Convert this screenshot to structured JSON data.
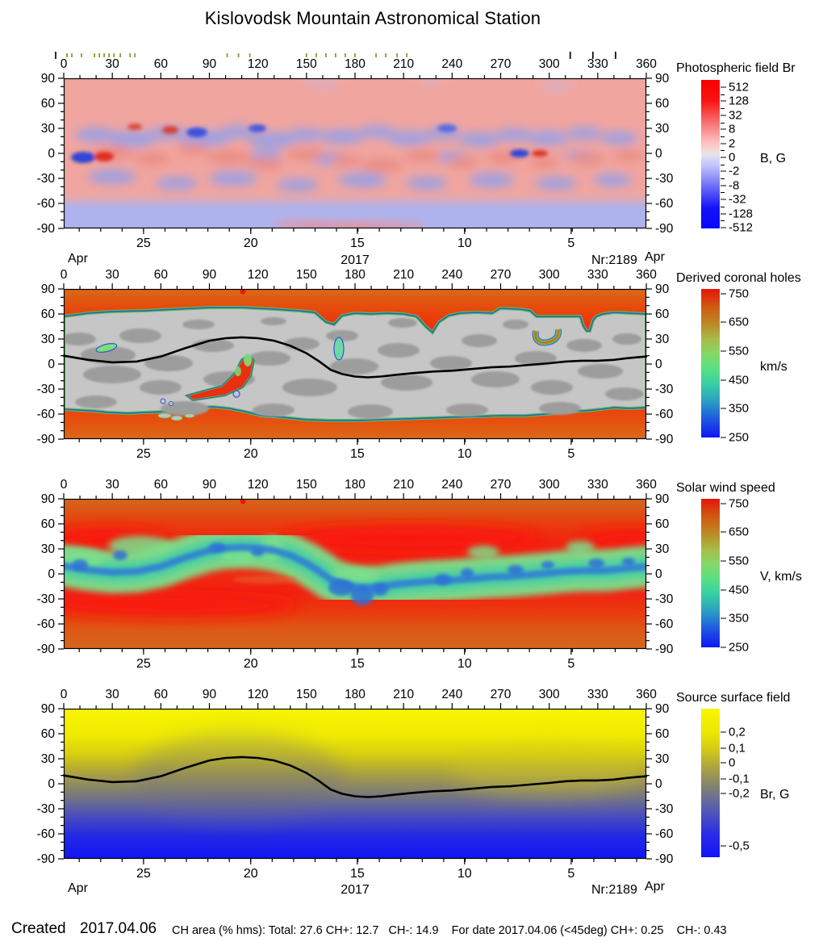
{
  "title": "Kislovodsk Mountain Astronomical Station",
  "footer": {
    "created": "Created",
    "created_date": "2017.04.06",
    "ch_area": "CH area (% hms): Total: 27.6 CH+: 12.7   CH-: 14.9    For date 2017.04.06 (<45deg) CH+: 0.25    CH-: 0.43"
  },
  "chart_data": [
    {
      "id": "photospheric-field-br",
      "type": "heatmap",
      "title": "Photospheric field Br",
      "x_axis": {
        "range": [
          0,
          360
        ],
        "major_ticks": [
          0,
          30,
          60,
          90,
          120,
          150,
          180,
          210,
          240,
          270,
          300,
          330,
          360
        ],
        "minor_step": 10
      },
      "y_axis": {
        "range": [
          -90,
          90
        ],
        "major_ticks": [
          90,
          60,
          30,
          0,
          -30,
          -60,
          -90
        ],
        "minor_step": 10
      },
      "date_axis": {
        "labels": [
          "25",
          "20",
          "15",
          "10",
          "5"
        ],
        "positions": [
          0.137,
          0.321,
          0.504,
          0.688,
          0.871
        ],
        "minor_step": 0.0368
      },
      "date_row": {
        "left": "Apr",
        "center": "2017",
        "right_nr": "Nr:2189",
        "right": "Apr"
      },
      "event_ticks": {
        "olive": [
          2,
          5,
          11,
          19,
          22,
          25,
          28,
          31,
          35,
          41,
          44,
          101,
          108,
          115,
          150,
          156,
          162,
          168,
          174,
          180,
          193,
          199,
          206,
          212
        ],
        "black": [
          -5,
          313,
          327,
          341
        ]
      },
      "colorbar": {
        "title": "Photospheric field Br",
        "unit": "B, G",
        "minor_between": true,
        "gradient_stops": [
          "#f80000",
          "#f87878",
          "#e6e6e6",
          "#7878f8",
          "#0808f8"
        ],
        "ticks": [
          {
            "label": "512",
            "pos": 0.05
          },
          {
            "label": "128",
            "pos": 0.144
          },
          {
            "label": "32",
            "pos": 0.239
          },
          {
            "label": "8",
            "pos": 0.333
          },
          {
            "label": "2",
            "pos": 0.428
          },
          {
            "label": "0",
            "pos": 0.522
          },
          {
            "label": "-2",
            "pos": 0.616
          },
          {
            "label": "-8",
            "pos": 0.711
          },
          {
            "label": "-32",
            "pos": 0.805
          },
          {
            "label": "-128",
            "pos": 0.9
          },
          {
            "label": "-512",
            "pos": 0.994
          }
        ]
      }
    },
    {
      "id": "derived-coronal-holes",
      "type": "heatmap",
      "title": "Derived coronal holes",
      "x_axis": {
        "range": [
          0,
          360
        ],
        "major_ticks": [
          0,
          30,
          60,
          90,
          120,
          150,
          180,
          210,
          240,
          270,
          300,
          330,
          360
        ],
        "minor_step": 10
      },
      "y_axis": {
        "range": [
          -90,
          90
        ],
        "major_ticks": [
          90,
          60,
          30,
          0,
          -30,
          -60,
          -90
        ],
        "minor_step": 10
      },
      "date_axis": {
        "labels": [
          "25",
          "20",
          "15",
          "10",
          "5"
        ],
        "positions": [
          0.137,
          0.321,
          0.504,
          0.688,
          0.871
        ],
        "minor_step": 0.0368
      },
      "neutral_line": [
        [
          0,
          10
        ],
        [
          15,
          5
        ],
        [
          30,
          2
        ],
        [
          45,
          3
        ],
        [
          60,
          9
        ],
        [
          75,
          19
        ],
        [
          90,
          28
        ],
        [
          100,
          31
        ],
        [
          110,
          32
        ],
        [
          120,
          31
        ],
        [
          130,
          28
        ],
        [
          140,
          22
        ],
        [
          150,
          13
        ],
        [
          158,
          3
        ],
        [
          165,
          -7
        ],
        [
          172,
          -12
        ],
        [
          180,
          -15
        ],
        [
          188,
          -16
        ],
        [
          196,
          -15
        ],
        [
          205,
          -13
        ],
        [
          215,
          -11
        ],
        [
          228,
          -9
        ],
        [
          240,
          -8
        ],
        [
          252,
          -6
        ],
        [
          264,
          -4
        ],
        [
          276,
          -3
        ],
        [
          288,
          -1
        ],
        [
          300,
          1
        ],
        [
          310,
          3
        ],
        [
          320,
          4
        ],
        [
          330,
          4
        ],
        [
          340,
          5
        ],
        [
          348,
          7
        ],
        [
          354,
          8
        ],
        [
          360,
          9
        ]
      ],
      "colorbar": {
        "title": "Derived coronal holes",
        "unit": "km/s",
        "minor_between": false,
        "gradient_stops": [
          "#e81408",
          "#bb8c28",
          "#58e084",
          "#2a9cc4",
          "#1016f4"
        ],
        "ticks": [
          {
            "label": "750",
            "pos": 0.03
          },
          {
            "label": "650",
            "pos": 0.224
          },
          {
            "label": "550",
            "pos": 0.418
          },
          {
            "label": "450",
            "pos": 0.612
          },
          {
            "label": "350",
            "pos": 0.806
          },
          {
            "label": "250",
            "pos": 1.0
          }
        ]
      }
    },
    {
      "id": "solar-wind-speed",
      "type": "heatmap",
      "title": "Solar wind speed",
      "x_axis": {
        "range": [
          0,
          360
        ],
        "major_ticks": [
          0,
          30,
          60,
          90,
          120,
          150,
          180,
          210,
          240,
          270,
          300,
          330,
          360
        ],
        "minor_step": 10
      },
      "y_axis": {
        "range": [
          -90,
          90
        ],
        "major_ticks": [
          90,
          60,
          30,
          0,
          -30,
          -60,
          -90
        ],
        "minor_step": 10
      },
      "date_axis": {
        "labels": [
          "25",
          "20",
          "15",
          "10",
          "5"
        ],
        "positions": [
          0.137,
          0.321,
          0.504,
          0.688,
          0.871
        ],
        "minor_step": 0.0368
      },
      "colorbar": {
        "title": "Solar wind speed",
        "unit": "V, km/s",
        "minor_between": false,
        "gradient_stops": [
          "#e81408",
          "#bb8c28",
          "#58e084",
          "#2a9cc4",
          "#1016f4"
        ],
        "ticks": [
          {
            "label": "750",
            "pos": 0.03
          },
          {
            "label": "650",
            "pos": 0.224
          },
          {
            "label": "550",
            "pos": 0.418
          },
          {
            "label": "450",
            "pos": 0.612
          },
          {
            "label": "350",
            "pos": 0.806
          },
          {
            "label": "250",
            "pos": 1.0
          }
        ]
      }
    },
    {
      "id": "source-surface-field",
      "type": "heatmap",
      "title": "Source surface field",
      "x_axis": {
        "range": [
          0,
          360
        ],
        "major_ticks": [
          0,
          30,
          60,
          90,
          120,
          150,
          180,
          210,
          240,
          270,
          300,
          330,
          360
        ],
        "minor_step": 10
      },
      "y_axis": {
        "range": [
          -90,
          90
        ],
        "major_ticks": [
          90,
          60,
          30,
          0,
          -30,
          -60,
          -90
        ],
        "minor_step": 10
      },
      "date_axis": {
        "labels": [
          "25",
          "20",
          "15",
          "10",
          "5"
        ],
        "positions": [
          0.137,
          0.321,
          0.504,
          0.688,
          0.871
        ],
        "minor_step": 0.0368
      },
      "date_row": {
        "left": "Apr",
        "center": "2017",
        "right_nr": "Nr:2189",
        "right": "Apr"
      },
      "neutral_line": [
        [
          0,
          10
        ],
        [
          15,
          5
        ],
        [
          30,
          2
        ],
        [
          45,
          3
        ],
        [
          60,
          9
        ],
        [
          75,
          19
        ],
        [
          90,
          28
        ],
        [
          100,
          31
        ],
        [
          110,
          32
        ],
        [
          120,
          31
        ],
        [
          130,
          28
        ],
        [
          140,
          22
        ],
        [
          150,
          13
        ],
        [
          158,
          3
        ],
        [
          165,
          -7
        ],
        [
          172,
          -12
        ],
        [
          180,
          -15
        ],
        [
          188,
          -16
        ],
        [
          196,
          -15
        ],
        [
          205,
          -13
        ],
        [
          215,
          -11
        ],
        [
          228,
          -9
        ],
        [
          240,
          -8
        ],
        [
          252,
          -6
        ],
        [
          264,
          -4
        ],
        [
          276,
          -3
        ],
        [
          288,
          -1
        ],
        [
          300,
          1
        ],
        [
          310,
          3
        ],
        [
          320,
          4
        ],
        [
          330,
          4
        ],
        [
          340,
          5
        ],
        [
          348,
          7
        ],
        [
          354,
          8
        ],
        [
          360,
          9
        ]
      ],
      "colorbar": {
        "title": "Source surface field",
        "unit": "Br, G",
        "minor_between": false,
        "gradient_stops": [
          "#f8f600",
          "#aaa244",
          "#6d6f92",
          "#1113f6"
        ],
        "ticks": [
          {
            "label": "0,2",
            "pos": 0.158
          },
          {
            "label": "0,1",
            "pos": 0.266
          },
          {
            "label": "0",
            "pos": 0.364
          },
          {
            "label": "-0,1",
            "pos": 0.473
          },
          {
            "label": "-0,2",
            "pos": 0.571
          },
          {
            "label": "-0,5",
            "pos": 0.924
          }
        ]
      }
    }
  ]
}
